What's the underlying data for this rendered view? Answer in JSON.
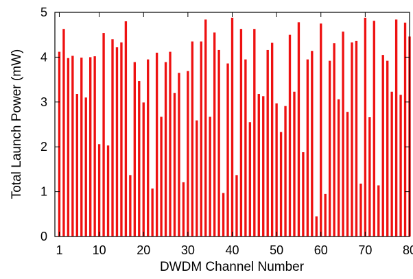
{
  "chart_data": {
    "type": "bar",
    "title": "",
    "xlabel": "DWDM Channel Number",
    "ylabel": "Total Launch Power (mW)",
    "xlim": [
      0,
      80
    ],
    "ylim": [
      0,
      5
    ],
    "xticks": [
      1,
      10,
      20,
      30,
      40,
      50,
      60,
      70,
      80
    ],
    "yticks": [
      0,
      1,
      2,
      3,
      4,
      5
    ],
    "grid": false,
    "bar_color": "#ee1111",
    "x": [
      1,
      2,
      3,
      4,
      5,
      6,
      7,
      8,
      9,
      10,
      11,
      12,
      13,
      14,
      15,
      16,
      17,
      18,
      19,
      20,
      21,
      22,
      23,
      24,
      25,
      26,
      27,
      28,
      29,
      30,
      31,
      32,
      33,
      34,
      35,
      36,
      37,
      38,
      39,
      40,
      41,
      42,
      43,
      44,
      45,
      46,
      47,
      48,
      49,
      50,
      51,
      52,
      53,
      54,
      55,
      56,
      57,
      58,
      59,
      60,
      61,
      62,
      63,
      64,
      65,
      66,
      67,
      68,
      69,
      70,
      71,
      72,
      73,
      74,
      75,
      76,
      77,
      78,
      79,
      80
    ],
    "values": [
      4.12,
      4.63,
      3.98,
      4.03,
      3.18,
      3.99,
      3.1,
      4.0,
      4.02,
      2.06,
      4.54,
      2.03,
      4.4,
      4.22,
      4.33,
      4.8,
      1.37,
      3.89,
      3.47,
      2.99,
      3.95,
      1.07,
      4.1,
      2.67,
      3.89,
      4.12,
      3.2,
      3.65,
      1.21,
      3.69,
      4.35,
      2.59,
      4.35,
      4.84,
      2.67,
      4.55,
      4.16,
      0.97,
      3.86,
      4.88,
      1.37,
      4.63,
      3.95,
      2.55,
      4.63,
      3.18,
      3.13,
      4.16,
      4.32,
      2.97,
      2.33,
      2.91,
      4.5,
      3.23,
      4.78,
      1.88,
      3.95,
      4.14,
      0.45,
      4.75,
      0.95,
      3.92,
      4.31,
      3.06,
      4.57,
      2.78,
      4.33,
      4.36,
      1.18,
      4.88,
      2.66,
      4.81,
      1.14,
      4.05,
      3.92,
      3.23,
      4.84,
      3.16,
      4.77,
      4.46
    ]
  }
}
